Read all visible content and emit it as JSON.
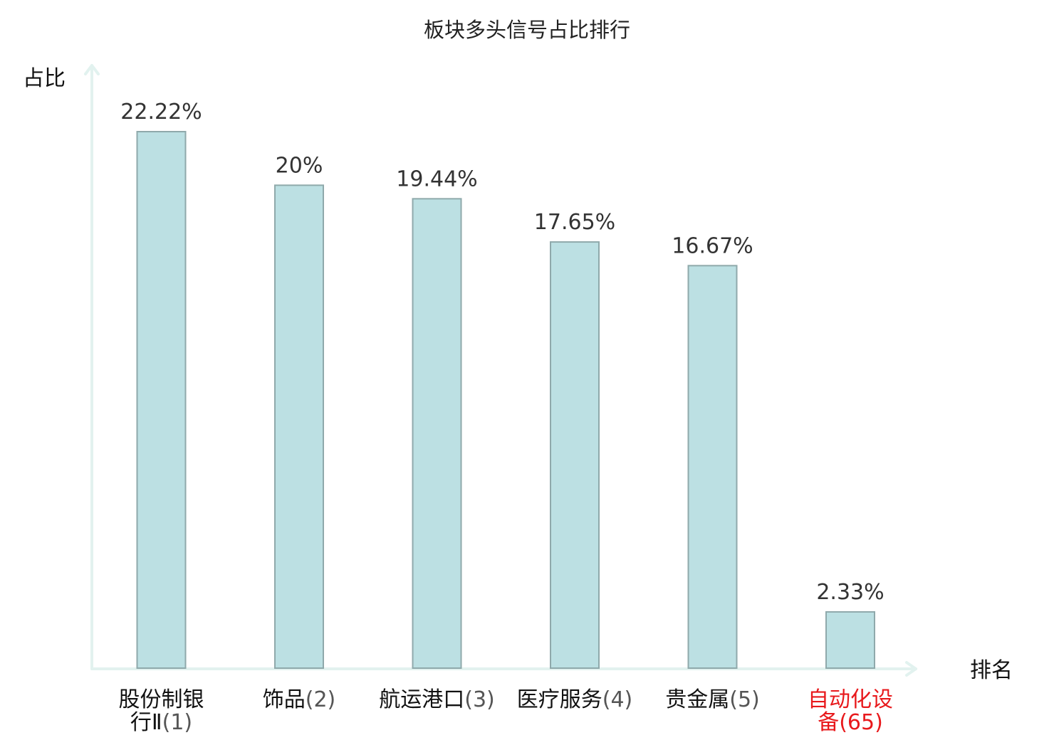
{
  "chart_data": {
    "type": "bar",
    "title": "板块多头信号占比排行",
    "ylabel": "占比",
    "xlabel": "排名",
    "categories": [
      {
        "name_lines": [
          "股份制银",
          "行Ⅱ"
        ],
        "rank": "(1)",
        "highlight": false
      },
      {
        "name_lines": [
          "饰品"
        ],
        "rank": "(2)",
        "highlight": false
      },
      {
        "name_lines": [
          "航运港口"
        ],
        "rank": "(3)",
        "highlight": false
      },
      {
        "name_lines": [
          "医疗服务"
        ],
        "rank": "(4)",
        "highlight": false
      },
      {
        "name_lines": [
          "贵金属"
        ],
        "rank": "(5)",
        "highlight": false
      },
      {
        "name_lines": [
          "自动化设",
          "备"
        ],
        "rank": "(65)",
        "highlight": true
      }
    ],
    "values": [
      22.22,
      20,
      19.44,
      17.65,
      16.67,
      2.33
    ],
    "value_labels": [
      "22.22%",
      "20%",
      "19.44%",
      "17.65%",
      "16.67%",
      "2.33%"
    ],
    "ylim": [
      0,
      22.22
    ],
    "grid": false,
    "colors": {
      "bar_fill": "#bce0e3",
      "bar_stroke": "#8fa9ab",
      "axis": "#e2f2ef",
      "highlight": "#e8191c"
    }
  }
}
